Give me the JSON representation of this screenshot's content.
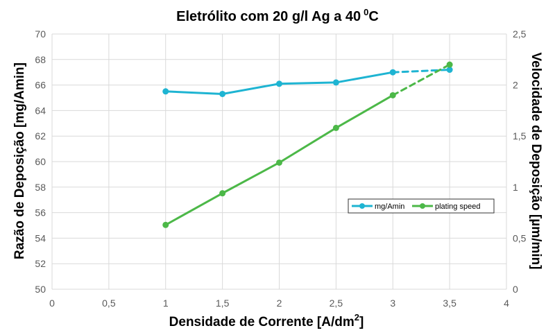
{
  "chart_data": {
    "type": "line",
    "title": "Eletrólito com 20 g/l Ag a 40",
    "title_superscript": "0",
    "title_unit": "C",
    "xlabel": "Densidade de Corrente [A/dm",
    "xlabel_superscript": "2",
    "xlabel_suffix": "]",
    "ylabel": "Razão de Deposição [mg/Amin]",
    "y2label": "Velocidade de Deposição [µm/min]",
    "xlim": [
      0,
      4
    ],
    "ylim": [
      50,
      70
    ],
    "y2lim": [
      0,
      2.5
    ],
    "x_ticks": [
      "0",
      "0,5",
      "1",
      "1,5",
      "2",
      "2,5",
      "3",
      "3,5",
      "4"
    ],
    "y_ticks": [
      "50",
      "52",
      "54",
      "56",
      "58",
      "60",
      "62",
      "64",
      "66",
      "68",
      "70"
    ],
    "y2_ticks": [
      "0",
      "0,5",
      "1",
      "1,5",
      "2",
      "2,5"
    ],
    "grid": true,
    "legend_position": "center-right",
    "series": [
      {
        "name": "mg/Amin",
        "axis": "left",
        "color": "#1EB4D2",
        "x": [
          1,
          1.5,
          2,
          2.5,
          3,
          3.5
        ],
        "y": [
          65.5,
          65.3,
          66.1,
          66.2,
          67.0,
          67.2
        ],
        "dashed_from_index": 4
      },
      {
        "name": "plating speed",
        "axis": "right",
        "color": "#4CB848",
        "x": [
          1,
          1.5,
          2,
          2.5,
          3,
          3.5
        ],
        "y": [
          0.63,
          0.94,
          1.24,
          1.58,
          1.9,
          2.2
        ],
        "dashed_from_index": 4
      }
    ]
  }
}
